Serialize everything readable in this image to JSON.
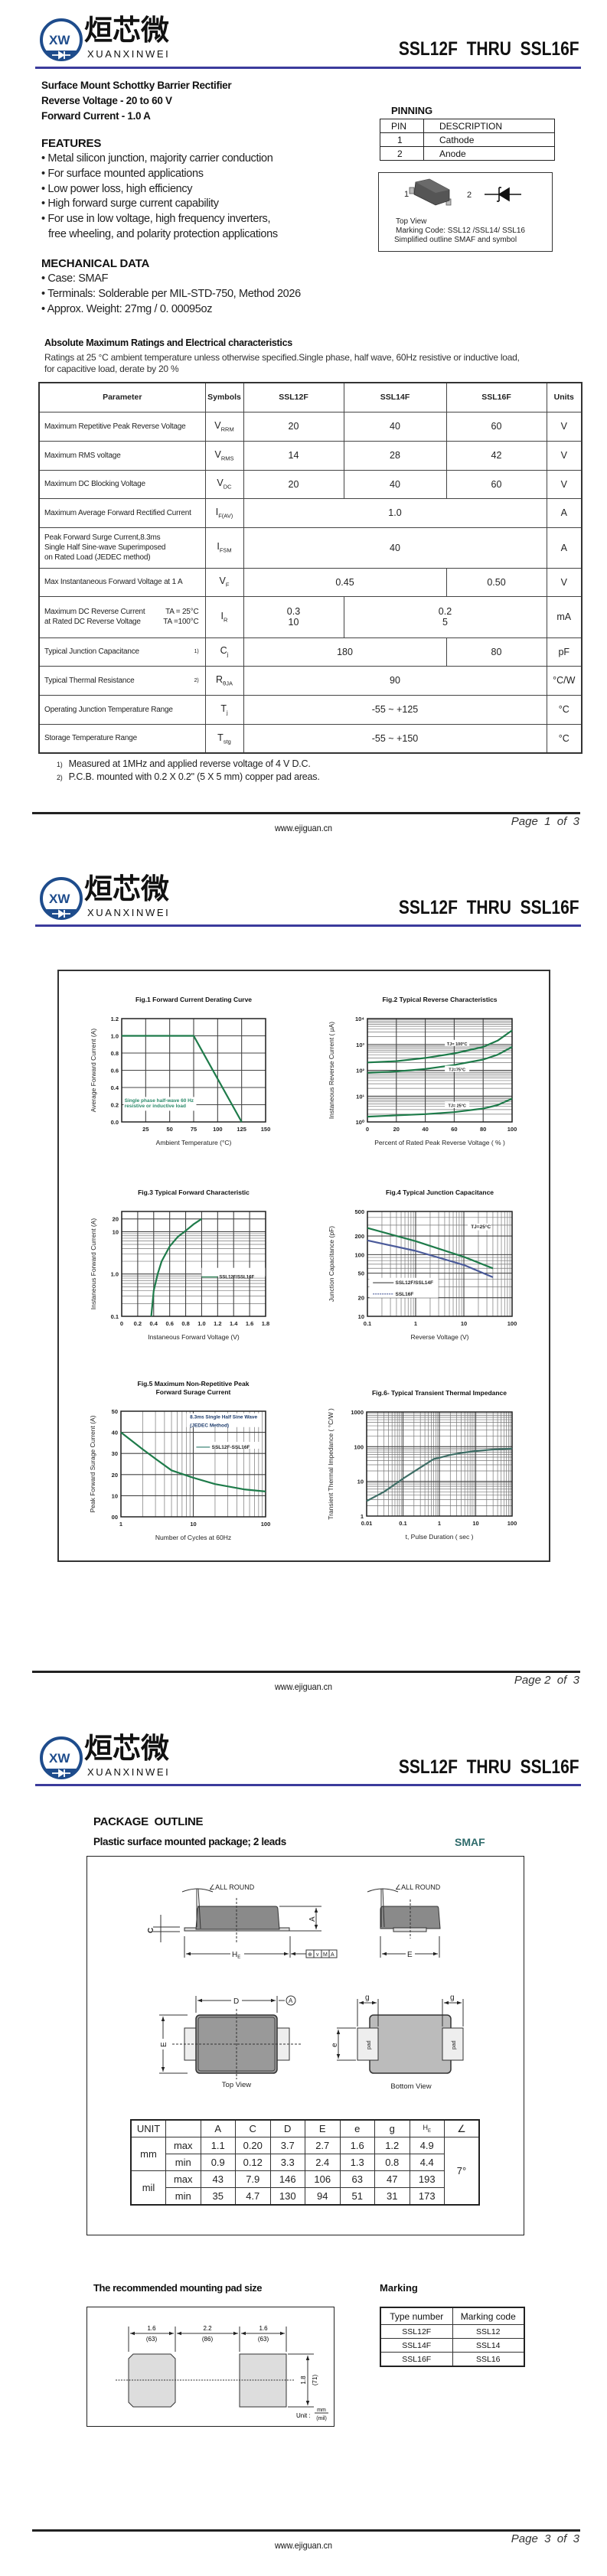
{
  "header": {
    "brand_cn": "烜芯微",
    "brand_en": "XUANXINWEI",
    "brand_mark": "XW",
    "title": "SSL12F  THRU  SSL16F"
  },
  "colors": {
    "brand_blue": "#1e4c8c",
    "rule_blue": "#3b3b9c",
    "curve_green": "#1e7b4a",
    "curve_blue": "#4a5a9a",
    "curve_teal": "#3e6e66",
    "smaf_teal": "#2f6b6b"
  },
  "product": {
    "lines": [
      "Surface Mount Schottky Barrier Rectifier",
      "Reverse Voltage - 20 to 60 V",
      "Forward Current - 1.0 A"
    ]
  },
  "features": {
    "heading": "FEATURES",
    "items": [
      "Metal silicon junction, majority carrier conduction",
      "For surface mounted applications",
      "Low power loss, high efficiency",
      "High forward surge current capability",
      "For use in low voltage, high frequency inverters,"
    ],
    "continuation": "free wheeling, and polarity protection applications"
  },
  "mechanical": {
    "heading": "MECHANICAL DATA",
    "items": [
      "Case: SMAF",
      "Terminals: Solderable per MIL-STD-750, Method 2026",
      "Approx. Weight:  27mg / 0. 00095oz"
    ]
  },
  "pinning": {
    "heading": "PINNING",
    "headers": [
      "PIN",
      "DESCRIPTION"
    ],
    "rows": [
      [
        "1",
        "Cathode"
      ],
      [
        "2",
        "Anode"
      ]
    ],
    "figure": {
      "pin1": "1",
      "pin2": "2",
      "caption": [
        "Top View",
        "Marking Code:  SSL12 /SSL14/ SSL16",
        "Simplified outline SMAF and symbol"
      ]
    }
  },
  "ratings": {
    "heading": "Absolute Maximum Ratings and Electrical characteristics",
    "conditions": [
      "Ratings at 25 °C ambient temperature unless otherwise specified.Single phase, half wave, 60Hz resistive or inductive load,",
      "for capacitive load, derate by 20 %"
    ],
    "headers": [
      "Parameter",
      "Symbols",
      "SSL12F",
      "SSL14F",
      "SSL16F",
      "Units"
    ],
    "rows": [
      {
        "param": [
          "Maximum Repetitive Peak Reverse Voltage"
        ],
        "sym": "V",
        "sub": "RRM",
        "values": [
          {
            "v": [
              "20"
            ]
          },
          {
            "v": [
              "40"
            ]
          },
          {
            "v": [
              "60"
            ]
          }
        ],
        "unit": "V"
      },
      {
        "param": [
          "Maximum RMS voltage"
        ],
        "sym": "V",
        "sub": "RMS",
        "values": [
          {
            "v": [
              "14"
            ]
          },
          {
            "v": [
              "28"
            ]
          },
          {
            "v": [
              "42"
            ]
          }
        ],
        "unit": "V"
      },
      {
        "param": [
          "Maximum DC Blocking Voltage"
        ],
        "sym": "V",
        "sub": "DC",
        "values": [
          {
            "v": [
              "20"
            ]
          },
          {
            "v": [
              "40"
            ]
          },
          {
            "v": [
              "60"
            ]
          }
        ],
        "unit": "V"
      },
      {
        "param": [
          "Maximum Average Forward Rectified Current"
        ],
        "sym": "I",
        "sub": "F(AV)",
        "values": [
          {
            "v": [
              "1.0"
            ],
            "span": 3
          }
        ],
        "unit": "A"
      },
      {
        "param": [
          "Peak Forward Surge Current,8.3ms",
          "Single Half Sine-wave Superimposed",
          "on Rated Load (JEDEC method)"
        ],
        "sym": "I",
        "sub": "FSM",
        "values": [
          {
            "v": [
              "40"
            ],
            "span": 3
          }
        ],
        "unit": "A"
      },
      {
        "param": [
          "Max Instantaneous Forward Voltage at 1 A"
        ],
        "sym": "V",
        "sub": "F",
        "values": [
          {
            "v": [
              "0.45"
            ],
            "span": 2
          },
          {
            "v": [
              "0.50"
            ]
          }
        ],
        "unit": "V"
      },
      {
        "param": [
          "Maximum DC Reverse Current",
          "at Rated DC Reverse Voltage"
        ],
        "cond": [
          "TA = 25°C",
          "TA =100°C"
        ],
        "sym": "I",
        "sub": "R",
        "values": [
          {
            "v": [
              "0.3",
              "10"
            ]
          },
          {
            "v": [
              "0.2",
              "5"
            ],
            "span": 2
          }
        ],
        "unit": "mA"
      },
      {
        "param": [
          "Typical Junction Capacitance"
        ],
        "note": "1)",
        "sym": "C",
        "sub": "j",
        "values": [
          {
            "v": [
              "180"
            ],
            "span": 2
          },
          {
            "v": [
              "80"
            ]
          }
        ],
        "unit": "pF"
      },
      {
        "param": [
          "Typical Thermal Resistance"
        ],
        "note": "2)",
        "sym": "R",
        "sub": "θJA",
        "values": [
          {
            "v": [
              "90"
            ],
            "span": 3
          }
        ],
        "unit": "°C/W"
      },
      {
        "param": [
          "Operating Junction Temperature Range"
        ],
        "sym": "T",
        "sub": "j",
        "values": [
          {
            "v": [
              "-55 ~ +125"
            ],
            "span": 3
          }
        ],
        "unit": "°C"
      },
      {
        "param": [
          "Storage Temperature Range"
        ],
        "sym": "T",
        "sub": "stg",
        "values": [
          {
            "v": [
              "-55 ~ +150"
            ],
            "span": 3
          }
        ],
        "unit": "°C"
      }
    ],
    "notes": [
      {
        "n": "1)",
        "text": "Measured at 1MHz and applied reverse voltage of 4 V D.C."
      },
      {
        "n": "2)",
        "text": "P.C.B. mounted with 0.2 X 0.2\" (5 X 5 mm) copper pad areas."
      }
    ]
  },
  "footer": {
    "website": "www.ejiguan.cn",
    "pages": [
      "Page  1  of  3",
      "Page 2  of  3",
      "Page  3  of  3"
    ]
  },
  "chart_data": [
    {
      "type": "line",
      "title": [
        "Fig.1  Forward Current Derating Curve"
      ],
      "xlabel": "Ambient  Temperature (°C)",
      "ylabel": "Average Forward Current (A)",
      "xscale": "linear",
      "yscale": "linear",
      "xlim": [
        0,
        150
      ],
      "ylim": [
        0,
        1.2
      ],
      "grid": true,
      "xticks": [
        25,
        50,
        75,
        100,
        125,
        150
      ],
      "xtick_labels": [
        "25",
        "50",
        "75",
        "100",
        "125",
        "150"
      ],
      "yticks": [
        0,
        0.2,
        0.4,
        0.6,
        0.8,
        1.0,
        1.2
      ],
      "ytick_labels": [
        "0.0",
        "0.2",
        "0.4",
        "0.6",
        "0.8",
        "1.0",
        "1.2"
      ],
      "series": [
        {
          "x": [
            0,
            75,
            125
          ],
          "y": [
            1.0,
            1.0,
            0
          ],
          "color": "#1e7b4a"
        }
      ],
      "annotations": [
        "Single phase half-wave 60 Hz",
        "resistive or inductive load"
      ]
    },
    {
      "type": "line",
      "title": [
        "Fig.2  Typical Reverse Characteristics"
      ],
      "xlabel": "Percent of Rated Peak Reverse Voltage  ( % )",
      "ylabel": "Instaneous Reverse Current ( μA)",
      "xscale": "linear",
      "yscale": "log",
      "xlim": [
        0,
        100
      ],
      "ylim": [
        1,
        10000
      ],
      "grid": true,
      "xticks": [
        0,
        20,
        40,
        60,
        80,
        100
      ],
      "xtick_labels": [
        "0",
        "20",
        "40",
        "60",
        "80",
        "100"
      ],
      "yticks": [
        1,
        10,
        100,
        1000,
        10000
      ],
      "ytick_labels": [
        "10⁰",
        "10¹",
        "10²",
        "10³",
        "10⁴"
      ],
      "series": [
        {
          "name": "TJ= 100°C",
          "x": [
            0,
            20,
            40,
            60,
            80,
            90,
            100
          ],
          "y": [
            200,
            225,
            300,
            450,
            800,
            1400,
            3500
          ],
          "color": "#1e7b4a"
        },
        {
          "name": "TJ=75°C",
          "x": [
            0,
            20,
            40,
            60,
            80,
            90,
            100
          ],
          "y": [
            80,
            90,
            112,
            160,
            260,
            400,
            800
          ],
          "color": "#1e7b4a"
        },
        {
          "name": "TJ= 25°C",
          "x": [
            0,
            20,
            40,
            60,
            80,
            90,
            100
          ],
          "y": [
            1.6,
            1.8,
            2.0,
            2.4,
            3.3,
            4.5,
            8
          ],
          "color": "#1e7b4a"
        }
      ],
      "annotations": []
    },
    {
      "type": "line",
      "title": [
        "Fig.3  Typical Forward Characteristic"
      ],
      "xlabel": "Instaneous Forward Voltage (V)",
      "ylabel": "Instaneous Forward Current  (A)",
      "xscale": "linear",
      "yscale": "log",
      "xlim": [
        0,
        1.8
      ],
      "ylim": [
        0.1,
        30
      ],
      "grid": true,
      "xticks": [
        0,
        0.2,
        0.4,
        0.6,
        0.8,
        1.0,
        1.2,
        1.4,
        1.6,
        1.8
      ],
      "xtick_labels": [
        "0",
        "0.2",
        "0.4",
        "0.6",
        "0.8",
        "1.0",
        "1.2",
        "1.4",
        "1.6",
        "1.8"
      ],
      "yticks": [
        0.1,
        1,
        10,
        20
      ],
      "ytick_labels": [
        "0.1",
        "1.0",
        "10",
        "20"
      ],
      "series": [
        {
          "name": "SSL12F/SSL16F",
          "x": [
            0.37,
            0.4,
            0.45,
            0.5,
            0.6,
            0.7,
            0.8,
            0.9,
            1.0
          ],
          "y": [
            0.1,
            0.4,
            1.0,
            2.0,
            4.5,
            7.5,
            10.5,
            15,
            20
          ],
          "color": "#1e7b4a"
        }
      ],
      "annotations": []
    },
    {
      "type": "line",
      "title": [
        "Fig.4  Typical Junction Capacitance"
      ],
      "xlabel": "Reverse  Voltage (V)",
      "ylabel": "Junction Capacitance (pF)",
      "xscale": "log",
      "yscale": "log",
      "xlim": [
        0.1,
        100
      ],
      "ylim": [
        10,
        500
      ],
      "grid": true,
      "xticks": [
        0.1,
        1,
        10,
        100
      ],
      "xtick_labels": [
        "0.1",
        "1",
        "10",
        "100"
      ],
      "yticks": [
        10,
        20,
        50,
        100,
        200,
        500
      ],
      "ytick_labels": [
        "10",
        "20",
        "50",
        "100",
        "200",
        "500"
      ],
      "series": [
        {
          "name": "SSL12F/SSL14F",
          "x": [
            0.1,
            1,
            10,
            40
          ],
          "y": [
            270,
            165,
            92,
            60
          ],
          "color": "#1e7b4a"
        },
        {
          "name": "SSL16F",
          "x": [
            0.1,
            1,
            10,
            40
          ],
          "y": [
            170,
            115,
            68,
            43
          ],
          "color": "#4a5a9a"
        }
      ],
      "annotations": [
        "TJ=25°C"
      ]
    },
    {
      "type": "line",
      "title": [
        "Fig.5  Maximum Non-Repetitive Peak",
        "Forward Surage Current"
      ],
      "xlabel": "Number of Cycles at 60Hz",
      "ylabel": "Peak Forward Surage Current (A)",
      "xscale": "log",
      "yscale": "linear",
      "xlim": [
        1,
        100
      ],
      "ylim": [
        0,
        50
      ],
      "grid": true,
      "xticks": [
        1,
        10,
        100
      ],
      "xtick_labels": [
        "1",
        "10",
        "100"
      ],
      "yticks": [
        0,
        10,
        20,
        30,
        40,
        50
      ],
      "ytick_labels": [
        "00",
        "10",
        "20",
        "30",
        "40",
        "50"
      ],
      "series": [
        {
          "name": "SSL12F-SSL16F",
          "x": [
            1,
            2,
            3,
            5,
            10,
            20,
            50,
            100
          ],
          "y": [
            40,
            32,
            27.5,
            22,
            18.5,
            15.5,
            13,
            12
          ],
          "color": "#1e7b4a"
        }
      ],
      "annotations": [
        "8.3ms Single Half Sine Wave",
        "(JEDEC Method)"
      ]
    },
    {
      "type": "line",
      "title": [
        "Fig.6- Typical Transient Thermal Impedance"
      ],
      "xlabel": "t, Pulse Duration ( sec )",
      "ylabel": "Transient Thermal Impedance ( °C/W )",
      "xscale": "log",
      "yscale": "log",
      "xlim": [
        0.01,
        100
      ],
      "ylim": [
        1,
        1000
      ],
      "grid": true,
      "xticks": [
        0.01,
        0.1,
        1,
        10,
        100
      ],
      "xtick_labels": [
        "0.01",
        "0.1",
        "1",
        "10",
        "100"
      ],
      "yticks": [
        1,
        10,
        100,
        1000
      ],
      "ytick_labels": [
        "1",
        "10",
        "100",
        "1000"
      ],
      "series": [
        {
          "x": [
            0.01,
            0.03,
            0.1,
            0.3,
            0.7,
            1,
            2,
            4,
            10,
            30,
            100
          ],
          "y": [
            2.7,
            5,
            12,
            25,
            44,
            48,
            58,
            66,
            75,
            83,
            88
          ],
          "color": "#3e6e66"
        }
      ],
      "annotations": []
    }
  ],
  "package": {
    "heading": "PACKAGE  OUTLINE",
    "subheading": "Plastic surface mounted package; 2 leads",
    "package_name": "SMAF",
    "drawing_labels": {
      "all_round": "∠ALL ROUND",
      "A": "A",
      "C": "C",
      "HE": "H",
      "HE_sub": "E",
      "E": "E",
      "D": "D",
      "e": "e",
      "g": "g",
      "pad": "pad",
      "circled_A": "A",
      "top_view": "Top View",
      "bottom_view": "Bottom View",
      "tol_cells": [
        "⊕",
        "v",
        "M",
        "A"
      ]
    },
    "dimensions": {
      "headers": [
        "UNIT",
        "",
        "A",
        "C",
        "D",
        "E",
        "e",
        "g",
        "HE",
        "∠"
      ],
      "angle": "7°",
      "groups": [
        {
          "unit": "mm",
          "rows": [
            {
              "lim": "max",
              "vals": [
                "1.1",
                "0.20",
                "3.7",
                "2.7",
                "1.6",
                "1.2",
                "4.9"
              ]
            },
            {
              "lim": "min",
              "vals": [
                "0.9",
                "0.12",
                "3.3",
                "2.4",
                "1.3",
                "0.8",
                "4.4"
              ]
            }
          ]
        },
        {
          "unit": "mil",
          "rows": [
            {
              "lim": "max",
              "vals": [
                "43",
                "7.9",
                "146",
                "106",
                "63",
                "47",
                "193"
              ]
            },
            {
              "lim": "min",
              "vals": [
                "35",
                "4.7",
                "130",
                "94",
                "51",
                "31",
                "173"
              ]
            }
          ]
        }
      ]
    },
    "pad": {
      "heading": "The recommended mounting pad size",
      "dims": [
        {
          "mm": "1.6",
          "mil": "(63)"
        },
        {
          "mm": "2.2",
          "mil": "(86)"
        },
        {
          "mm": "1.6",
          "mil": "(63)"
        }
      ],
      "height": {
        "mm": "1.8",
        "mil": "(71)"
      },
      "unit_label": "Unit :",
      "unit_top": "mm",
      "unit_bottom": "(mil)"
    },
    "marking": {
      "heading": "Marking",
      "headers": [
        "Type number",
        "Marking code"
      ],
      "rows": [
        [
          "SSL12F",
          "SSL12"
        ],
        [
          "SSL14F",
          "SSL14"
        ],
        [
          "SSL16F",
          "SSL16"
        ]
      ]
    }
  }
}
